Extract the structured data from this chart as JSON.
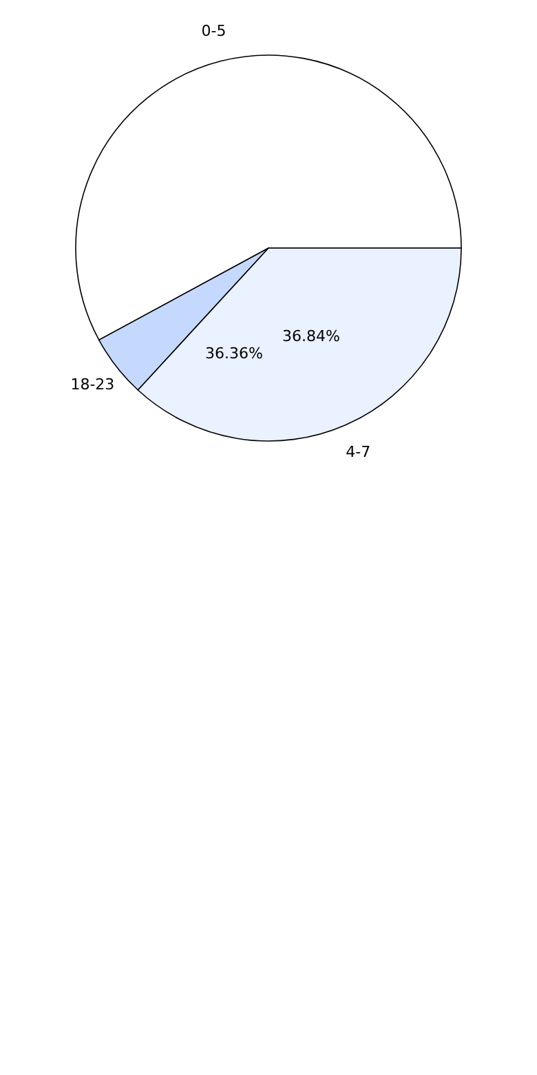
{
  "chart_data": {
    "type": "pie",
    "categories": [
      "0-5",
      "18-23",
      "4-7"
    ],
    "values": [
      57.9,
      5.26,
      36.84
    ],
    "colors": [
      "#ffffff",
      "#c5d9ff",
      "#eaf1ff"
    ],
    "value_labels": [
      null,
      null,
      "36.84%"
    ],
    "annotations": [
      "36.36%"
    ]
  }
}
